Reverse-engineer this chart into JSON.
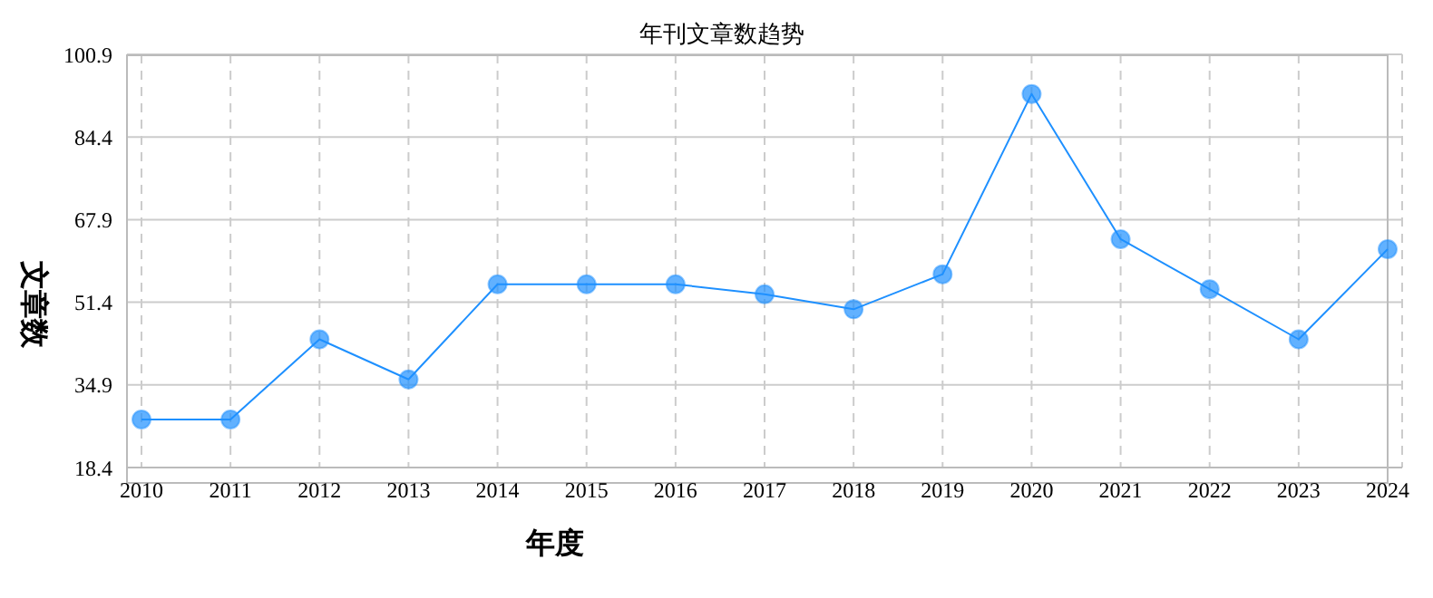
{
  "chart_data": {
    "type": "line",
    "title": "年刊文章数趋势",
    "xlabel": "年度",
    "ylabel": "文章数",
    "categories": [
      "2010",
      "2011",
      "2012",
      "2013",
      "2014",
      "2015",
      "2016",
      "2017",
      "2018",
      "2019",
      "2020",
      "2021",
      "2022",
      "2023",
      "2024"
    ],
    "series": [
      {
        "color": "#1e90ff",
        "values": [
          28,
          28,
          44,
          36,
          55,
          55,
          55,
          53,
          50,
          57,
          93,
          64,
          54,
          44,
          62
        ]
      }
    ],
    "ylim": [
      18.4,
      100.9
    ],
    "yticks": [
      18.4,
      34.9,
      51.4,
      67.9,
      84.4,
      100.9
    ],
    "grid": true,
    "marker": "circle"
  }
}
